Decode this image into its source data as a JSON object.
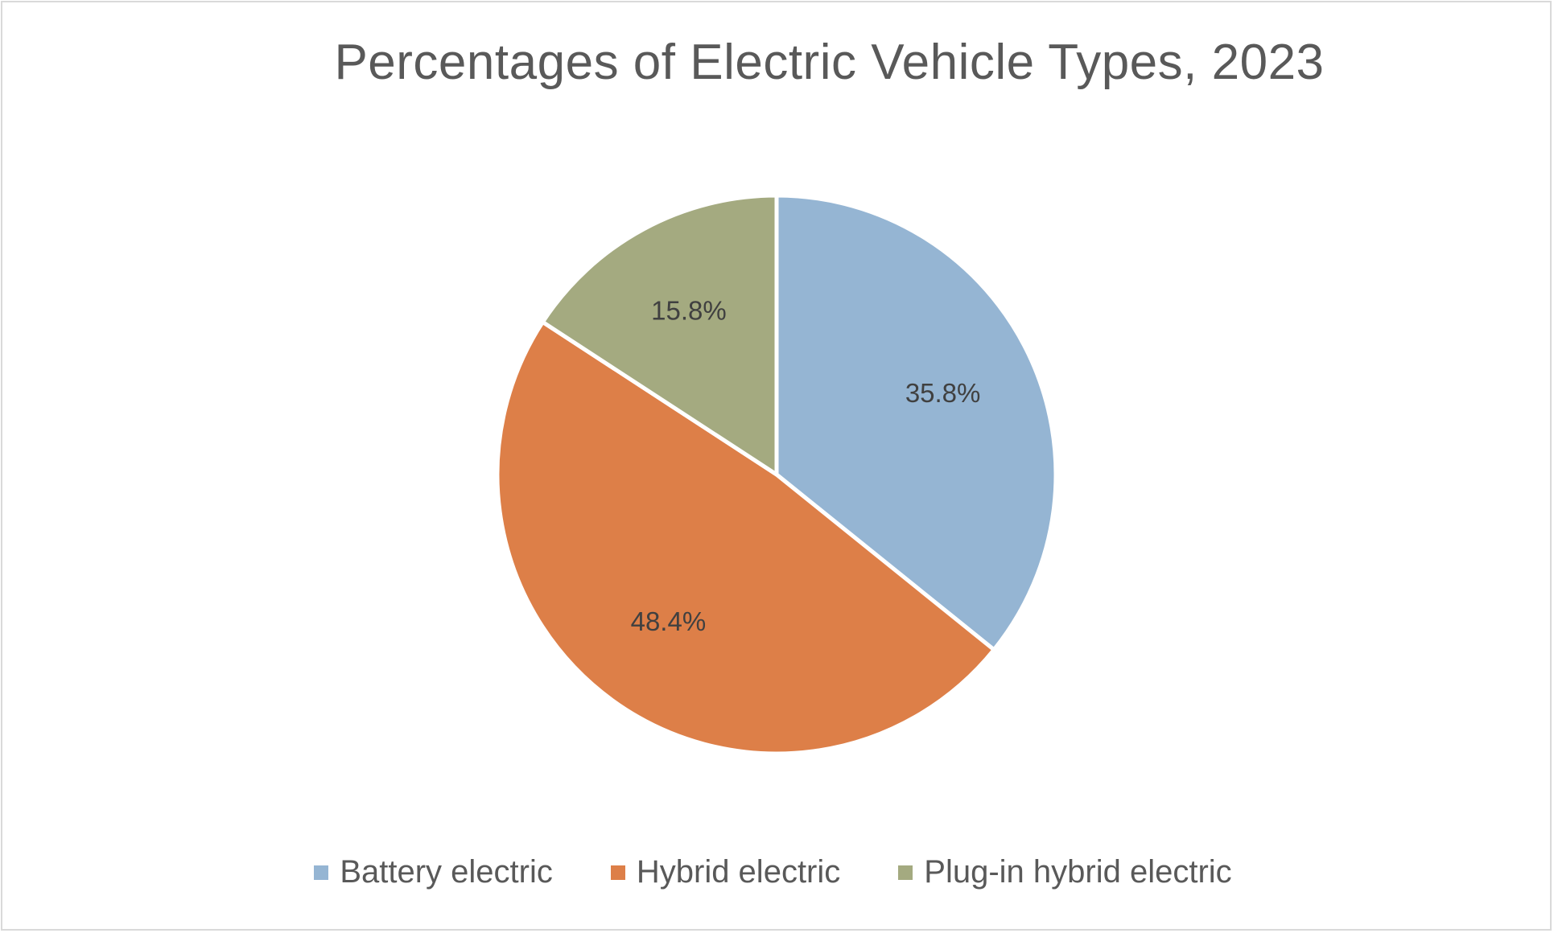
{
  "chart_data": {
    "type": "pie",
    "title": "Percentages of Electric Vehicle Types, 2023",
    "categories": [
      "Battery electric",
      "Hybrid electric",
      "Plug-in hybrid electric"
    ],
    "values": [
      35.8,
      48.4,
      15.8
    ],
    "data_labels": [
      "35.8%",
      "48.4%",
      "15.8%"
    ],
    "colors": [
      "#95b5d3",
      "#dd7f48",
      "#a4aa80"
    ],
    "start_angle_deg": 0,
    "direction": "clockwise",
    "legend_position": "bottom",
    "slice_border_color": "#ffffff"
  }
}
